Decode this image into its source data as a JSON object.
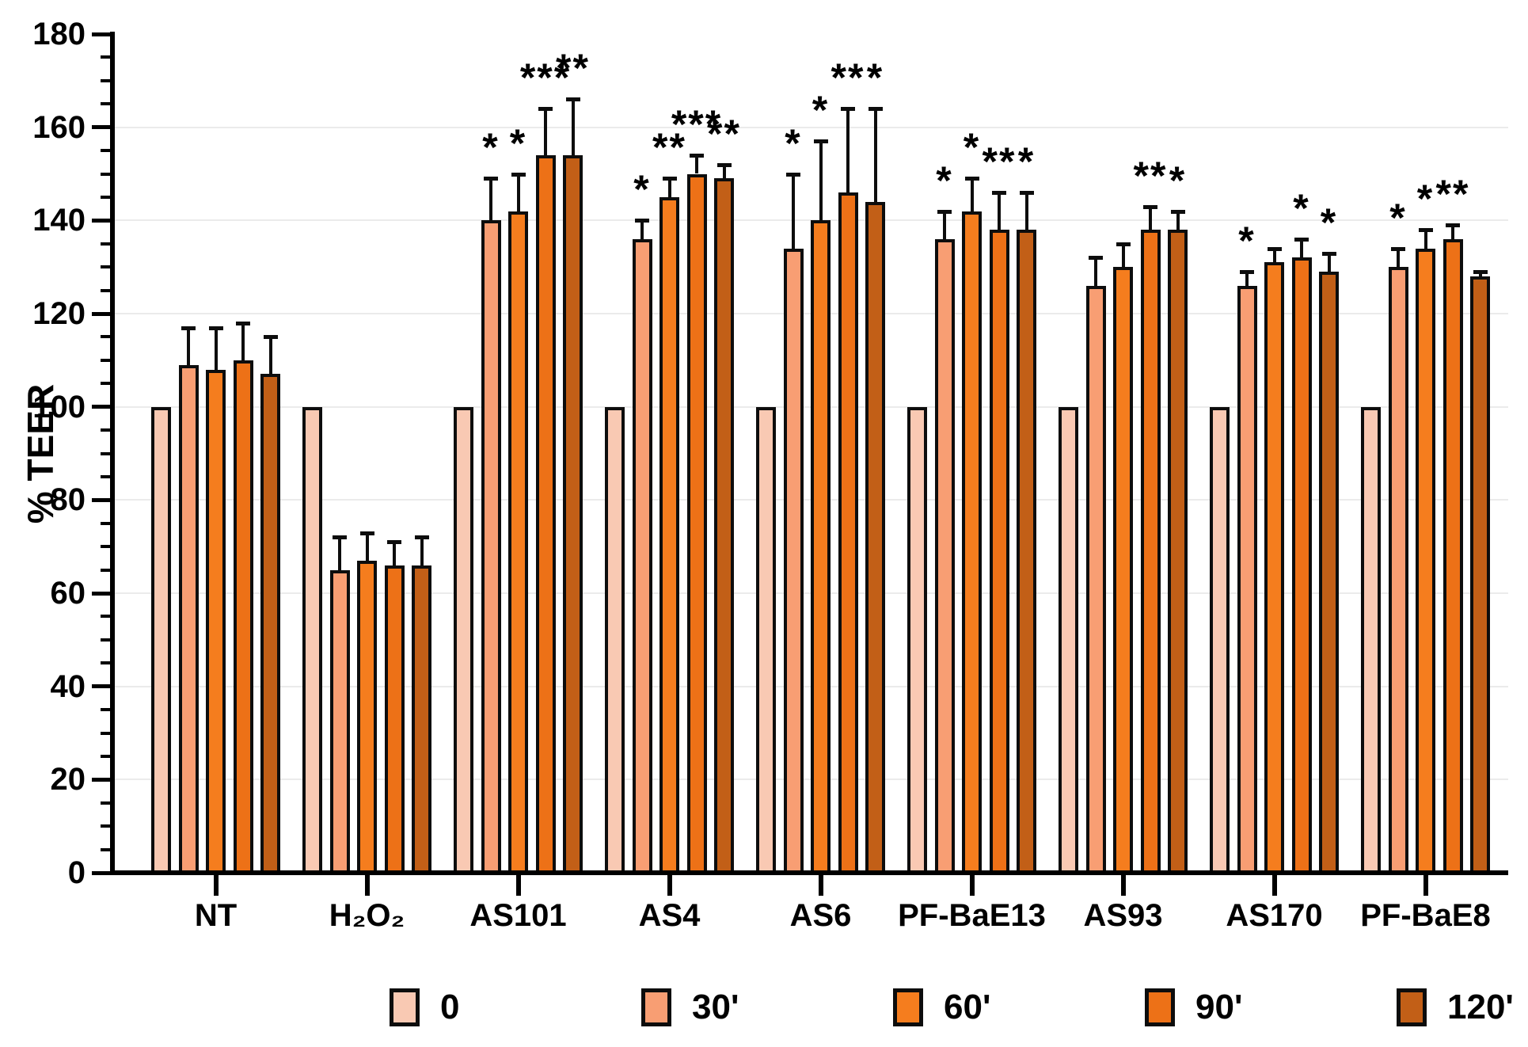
{
  "chart_data": {
    "type": "bar",
    "title": "",
    "xlabel": "",
    "ylabel": "% TEER",
    "ylim": [
      0,
      180
    ],
    "yticks": [
      0,
      20,
      40,
      60,
      80,
      100,
      120,
      140,
      160,
      180
    ],
    "minor_tick_step": 5,
    "grid": true,
    "legend_position": "bottom",
    "categories": [
      "NT",
      "H₂O₂",
      "AS101",
      "AS4",
      "AS6",
      "PF-BaE13",
      "AS93",
      "AS170",
      "PF-BaE8"
    ],
    "series": [
      {
        "name": "0",
        "color": "#F9C9B3",
        "values": [
          100,
          100,
          100,
          100,
          100,
          100,
          100,
          100,
          100
        ],
        "err_up": [
          0,
          0,
          0,
          0,
          0,
          0,
          0,
          0,
          0
        ],
        "sig": [
          "",
          "",
          "",
          "",
          "",
          "",
          "",
          "",
          ""
        ]
      },
      {
        "name": "30'",
        "color": "#F89E73",
        "values": [
          109,
          65,
          140,
          136,
          134,
          136,
          126,
          126,
          130
        ],
        "err_up": [
          8,
          7,
          9,
          4,
          16,
          6,
          6,
          3,
          4
        ],
        "sig": [
          "",
          "",
          "*",
          "*",
          "*",
          "*",
          "",
          "*",
          "*"
        ]
      },
      {
        "name": "60'",
        "color": "#F57D1E",
        "values": [
          108,
          67,
          142,
          145,
          140,
          142,
          130,
          131,
          134
        ],
        "err_up": [
          9,
          6,
          8,
          4,
          17,
          7,
          5,
          3,
          4
        ],
        "sig": [
          "",
          "",
          "*",
          "**",
          "*",
          "*",
          "",
          "",
          "*"
        ]
      },
      {
        "name": "90'",
        "color": "#ED7117",
        "values": [
          110,
          66,
          154,
          150,
          146,
          138,
          138,
          132,
          136
        ],
        "err_up": [
          8,
          5,
          10,
          4,
          18,
          8,
          5,
          4,
          3
        ],
        "sig": [
          "",
          "",
          "***",
          "***",
          "**",
          "**",
          "**",
          "*",
          "**"
        ]
      },
      {
        "name": "120'",
        "color": "#C25F17",
        "values": [
          107,
          66,
          154,
          149,
          144,
          138,
          138,
          129,
          128
        ],
        "err_up": [
          8,
          6,
          12,
          3,
          20,
          8,
          4,
          4,
          1
        ],
        "sig": [
          "",
          "",
          "**",
          "**",
          "*",
          "*",
          "*",
          "*",
          ""
        ]
      }
    ]
  }
}
